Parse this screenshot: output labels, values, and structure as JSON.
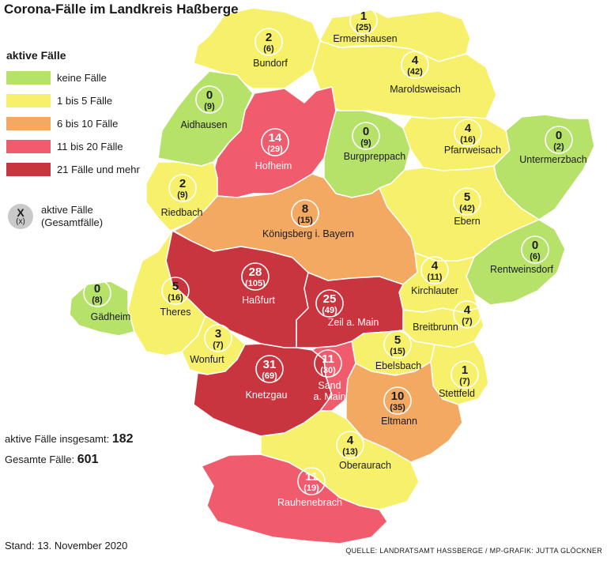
{
  "title": "Corona-Fälle im Landkreis Haßberge",
  "legend": {
    "title": "aktive Fälle",
    "items": [
      {
        "label": "keine Fälle",
        "color": "#b6e26a"
      },
      {
        "label": "1 bis 5 Fälle",
        "color": "#f7f06a"
      },
      {
        "label": "6 bis 10 Fälle",
        "color": "#f4a963"
      },
      {
        "label": "11 bis 20 Fälle",
        "color": "#f05c6e"
      },
      {
        "label": "21 Fälle und mehr",
        "color": "#c9353f"
      }
    ],
    "key_symbol": "X",
    "key_symbol_sub": "(x)",
    "key_line1": "aktive Fälle",
    "key_line2": "(Gesamtfälle)"
  },
  "totals": {
    "active_label": "aktive Fälle insgesamt:",
    "active_value": "182",
    "total_label": "Gesamte Fälle:",
    "total_value": "601"
  },
  "stand": "Stand: 13. November 2020",
  "source": "QUELLE: LANDRATSAMT HASSBERGE / MP-GRAFIK: JUTTA GLÖCKNER",
  "municipalities": [
    {
      "name": "Ermershausen",
      "active": "1",
      "total": "(25)",
      "color": "#f7f06a"
    },
    {
      "name": "Bundorf",
      "active": "2",
      "total": "(6)",
      "color": "#f7f06a"
    },
    {
      "name": "Maroldsweisach",
      "active": "4",
      "total": "(42)",
      "color": "#f7f06a"
    },
    {
      "name": "Aidhausen",
      "active": "0",
      "total": "(9)",
      "color": "#b6e26a"
    },
    {
      "name": "Hofheim",
      "active": "14",
      "total": "(29)",
      "color": "#f05c6e"
    },
    {
      "name": "Burgpreppach",
      "active": "0",
      "total": "(9)",
      "color": "#b6e26a"
    },
    {
      "name": "Pfarrweisach",
      "active": "4",
      "total": "(16)",
      "color": "#f7f06a"
    },
    {
      "name": "Untermerzbach",
      "active": "0",
      "total": "(2)",
      "color": "#b6e26a"
    },
    {
      "name": "Riedbach",
      "active": "2",
      "total": "(9)",
      "color": "#f7f06a"
    },
    {
      "name": "Ebern",
      "active": "5",
      "total": "(42)",
      "color": "#f7f06a"
    },
    {
      "name": "Königsberg i. Bayern",
      "active": "8",
      "total": "(15)",
      "color": "#f4a963"
    },
    {
      "name": "Rentweinsdorf",
      "active": "0",
      "total": "(6)",
      "color": "#b6e26a"
    },
    {
      "name": "Haßfurt",
      "active": "28",
      "total": "(105)",
      "color": "#c9353f"
    },
    {
      "name": "Kirchlauter",
      "active": "4",
      "total": "(11)",
      "color": "#f7f06a"
    },
    {
      "name": "Theres",
      "active": "5",
      "total": "(16)",
      "color": "#f7f06a"
    },
    {
      "name": "Gädheim",
      "active": "0",
      "total": "(8)",
      "color": "#b6e26a"
    },
    {
      "name": "Zeil a. Main",
      "active": "25",
      "total": "(49)",
      "color": "#c9353f"
    },
    {
      "name": "Breitbrunn",
      "active": "4",
      "total": "(7)",
      "color": "#f7f06a"
    },
    {
      "name": "Wonfurt",
      "active": "3",
      "total": "(7)",
      "color": "#f7f06a"
    },
    {
      "name": "Ebelsbach",
      "active": "5",
      "total": "(15)",
      "color": "#f7f06a"
    },
    {
      "name": "Knetzgau",
      "active": "31",
      "total": "(69)",
      "color": "#c9353f"
    },
    {
      "name": "Sand a. Main",
      "active": "11",
      "total": "(30)",
      "color": "#f05c6e"
    },
    {
      "name": "Stettfeld",
      "active": "1",
      "total": "(7)",
      "color": "#f7f06a"
    },
    {
      "name": "Eltmann",
      "active": "10",
      "total": "(35)",
      "color": "#f4a963"
    },
    {
      "name": "Oberaurach",
      "active": "4",
      "total": "(13)",
      "color": "#f7f06a"
    },
    {
      "name": "Rauhenebrach",
      "active": "11",
      "total": "(19)",
      "color": "#f05c6e"
    }
  ]
}
